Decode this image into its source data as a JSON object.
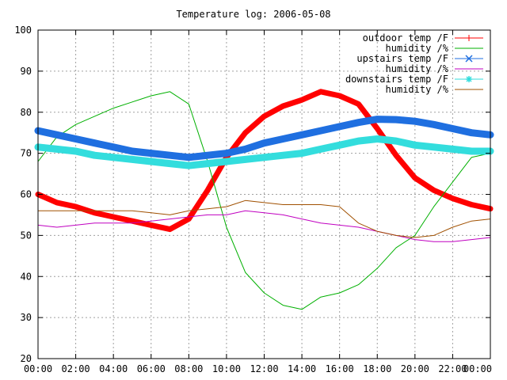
{
  "chart_data": {
    "type": "line",
    "title": "Temperature log: 2006-05-08",
    "xlabel": "",
    "ylabel": "",
    "ylim": [
      20,
      100
    ],
    "yticks": [
      "20",
      "30",
      "40",
      "50",
      "60",
      "70",
      "80",
      "90",
      "100"
    ],
    "xlim": [
      "00:00",
      "24:00"
    ],
    "xticks": [
      "00:00",
      "02:00",
      "04:00",
      "06:00",
      "08:00",
      "10:00",
      "12:00",
      "14:00",
      "16:00",
      "18:00",
      "20:00",
      "22:00",
      "00:00"
    ],
    "grid": true,
    "legend_position": "top-right",
    "x": [
      "00:00",
      "01:00",
      "02:00",
      "03:00",
      "04:00",
      "05:00",
      "06:00",
      "07:00",
      "08:00",
      "09:00",
      "10:00",
      "11:00",
      "12:00",
      "13:00",
      "14:00",
      "15:00",
      "16:00",
      "17:00",
      "18:00",
      "19:00",
      "20:00",
      "21:00",
      "22:00",
      "23:00",
      "24:00"
    ],
    "series": [
      {
        "name": "outdoor temp /F",
        "color": "#ff0000",
        "values": [
          60,
          58,
          57,
          55.5,
          54.5,
          53.5,
          52.5,
          51.5,
          54,
          61,
          69,
          75,
          79,
          81.5,
          83,
          85,
          84,
          82,
          76,
          69.5,
          64,
          61,
          59,
          57.5,
          56.5
        ]
      },
      {
        "name": "humidity /%",
        "color": "#00b000",
        "values": [
          68,
          74,
          77,
          79,
          81,
          82.5,
          84,
          85,
          82,
          68,
          52,
          41,
          36,
          33,
          32,
          35,
          36,
          38,
          42,
          47,
          50,
          57,
          63,
          69,
          70
        ]
      },
      {
        "name": "upstairs temp /F",
        "color": "#1f6fe0",
        "values": [
          75.5,
          74.5,
          73.5,
          72.5,
          71.5,
          70.5,
          70,
          69.5,
          69,
          69.5,
          70,
          71,
          72.5,
          73.5,
          74.5,
          75.5,
          76.5,
          77.5,
          78.3,
          78.2,
          77.8,
          77,
          76,
          75,
          74.5
        ]
      },
      {
        "name": "humidity /%",
        "color": "#c000c0",
        "values": [
          52.5,
          52,
          52.5,
          53,
          53,
          53,
          53.5,
          54,
          54.5,
          55,
          55,
          56,
          55.5,
          55,
          54,
          53,
          52.5,
          52,
          51,
          50,
          49,
          48.5,
          48.5,
          49,
          49.5
        ]
      },
      {
        "name": "downstairs temp /F",
        "color": "#33dddd",
        "values": [
          71.5,
          71,
          70.5,
          69.5,
          69,
          68.5,
          68,
          67.5,
          67,
          67.5,
          68,
          68.5,
          69,
          69.5,
          70,
          71,
          72,
          73,
          73.5,
          73,
          72,
          71.5,
          71,
          70.5,
          70.5
        ]
      },
      {
        "name": "humidity /%",
        "color": "#a05000",
        "values": [
          56,
          56,
          56,
          56,
          56,
          56,
          55.5,
          55,
          56,
          56.5,
          57,
          58.5,
          58,
          57.5,
          57.5,
          57.5,
          57,
          53,
          51,
          50,
          49.5,
          50,
          52,
          53.5,
          54
        ]
      }
    ]
  }
}
